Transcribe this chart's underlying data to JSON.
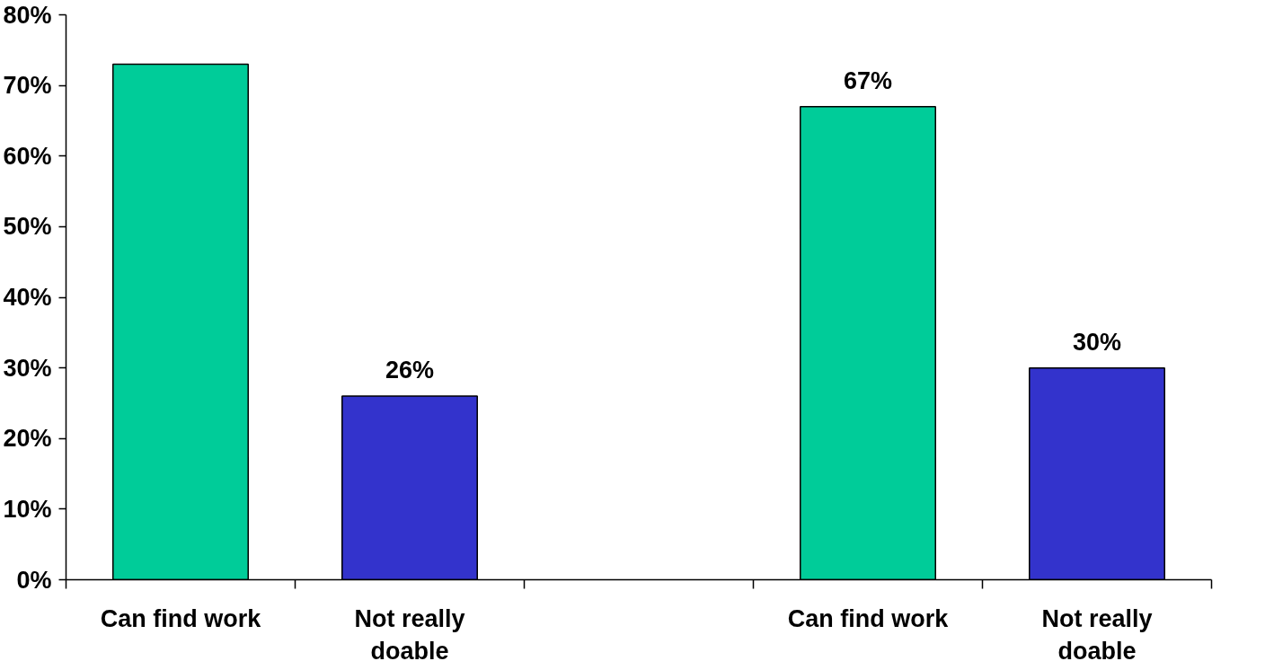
{
  "chart_data": {
    "type": "bar",
    "categories": [
      "Can find work",
      "Not really doable",
      null,
      "Can find work",
      "Not really doable"
    ],
    "values": [
      73,
      26,
      null,
      67,
      30
    ],
    "colors": [
      "#00cc99",
      "#3333cc",
      null,
      "#00cc99",
      "#3333cc"
    ],
    "value_labels": [
      null,
      "26%",
      null,
      "67%",
      "30%"
    ],
    "ylim": [
      0,
      80
    ],
    "yticks": [
      {
        "value": 0,
        "label": "0%"
      },
      {
        "value": 10,
        "label": "10%"
      },
      {
        "value": 20,
        "label": "20%"
      },
      {
        "value": 30,
        "label": "30%"
      },
      {
        "value": 40,
        "label": "40%"
      },
      {
        "value": 50,
        "label": "50%"
      },
      {
        "value": 60,
        "label": "60%"
      },
      {
        "value": 70,
        "label": "70%"
      },
      {
        "value": 80,
        "label": "80%"
      }
    ]
  }
}
